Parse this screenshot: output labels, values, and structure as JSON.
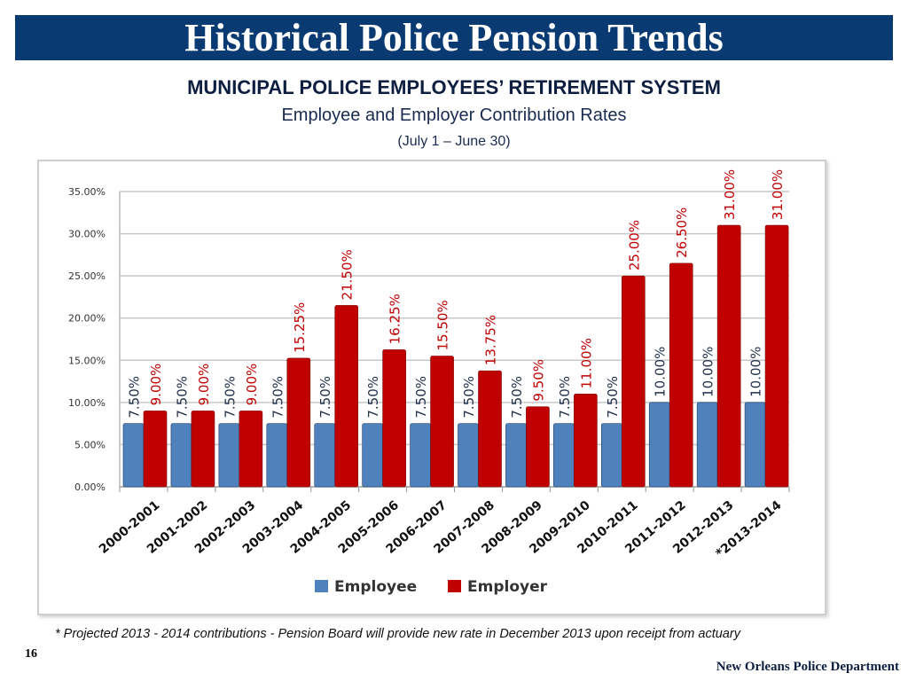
{
  "header": {
    "title": "Historical Police Pension Trends"
  },
  "subtitle": {
    "line1": "MUNICIPAL POLICE EMPLOYEES’ RETIREMENT SYSTEM",
    "line2": "Employee and Employer Contribution Rates",
    "line3": "(July 1 – June 30)"
  },
  "footer": {
    "note": "* Projected 2013 - 2014 contributions  -  Pension Board will  provide new rate in December 2013 upon receipt from actuary",
    "page": "16",
    "dept": "New Orleans Police Department"
  },
  "chart_data": {
    "type": "bar",
    "categories": [
      "2000-2001",
      "2001-2002",
      "2002-2003",
      "2003-2004",
      "2004-2005",
      "2005-2006",
      "2006-2007",
      "2007-2008",
      "2008-2009",
      "2009-2010",
      "2010-2011",
      "2011-2012",
      "2012-2013",
      "*2013-2014"
    ],
    "series": [
      {
        "name": "Employee",
        "color": "#4f81bd",
        "values": [
          7.5,
          7.5,
          7.5,
          7.5,
          7.5,
          7.5,
          7.5,
          7.5,
          7.5,
          7.5,
          7.5,
          10,
          10,
          10
        ],
        "labels": [
          "7.50%",
          "7.50%",
          "7.50%",
          "7.50%",
          "7.50%",
          "7.50%",
          "7.50%",
          "7.50%",
          "7.50%",
          "7.50%",
          "7.50%",
          "10.00%",
          "10.00%",
          "10.00%"
        ],
        "label_color": "#1f2d4a"
      },
      {
        "name": "Employer",
        "color": "#c00000",
        "values": [
          9,
          9,
          9,
          15.25,
          21.5,
          16.25,
          15.5,
          13.75,
          9.5,
          11,
          25,
          26.5,
          31,
          31
        ],
        "labels": [
          "9.00%",
          "9.00%",
          "9.00%",
          "15.25%",
          "21.50%",
          "16.25%",
          "15.50%",
          "13.75%",
          "9.50%",
          "11.00%",
          "25.00%",
          "26.50%",
          "31.00%",
          "31.00%"
        ],
        "label_color": "#c00000"
      }
    ],
    "yticks": [
      "0.00%",
      "5.00%",
      "10.00%",
      "15.00%",
      "20.00%",
      "25.00%",
      "30.00%",
      "35.00%"
    ],
    "ylim": [
      0,
      35
    ],
    "grid": true,
    "legend": "bottom"
  }
}
